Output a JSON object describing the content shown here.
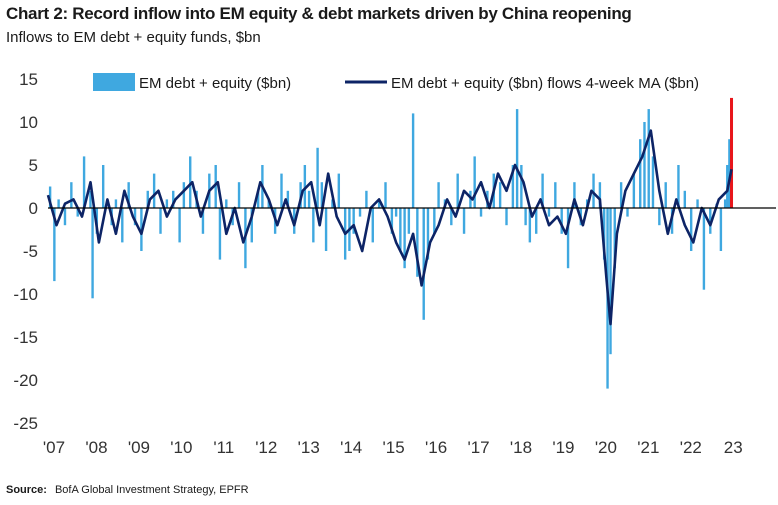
{
  "header": {
    "title": "Chart 2: Record inflow into EM equity & debt markets driven by China reopening",
    "subtitle": "Inflows to EM debt + equity funds, $bn"
  },
  "footer": {
    "source_label": "Source:",
    "source_text": "BofA Global Investment Strategy, EPFR"
  },
  "colors": {
    "bar": "#3fa8e0",
    "ma_line": "#0d2466",
    "highlight": "#e8161b",
    "axis": "#000000"
  },
  "chart_data": {
    "type": "area",
    "title": "Chart 2: Record inflow into EM equity & debt markets driven by China reopening",
    "subtitle": "Inflows to EM debt + equity funds, $bn",
    "ylim": [
      -25,
      15
    ],
    "yticks": [
      15,
      10,
      5,
      0,
      -5,
      -10,
      -15,
      -20,
      -25
    ],
    "xlim": [
      2007.0,
      2023.3
    ],
    "xtick_labels": [
      "'07",
      "'08",
      "'09",
      "'10",
      "'11",
      "'12",
      "'13",
      "'14",
      "'15",
      "'16",
      "'17",
      "'18",
      "'19",
      "'20",
      "'21",
      "'22",
      "23"
    ],
    "legend_placement": "top",
    "series": [
      {
        "name": "EM debt + equity ($bn)",
        "kind": "weekly bars",
        "x": [
          2007.05,
          2007.15,
          2007.25,
          2007.4,
          2007.55,
          2007.7,
          2007.85,
          2008.0,
          2008.05,
          2008.15,
          2008.3,
          2008.5,
          2008.6,
          2008.75,
          2008.9,
          2009.05,
          2009.2,
          2009.35,
          2009.5,
          2009.65,
          2009.8,
          2009.95,
          2010.1,
          2010.2,
          2010.35,
          2010.5,
          2010.65,
          2010.8,
          2010.95,
          2011.05,
          2011.2,
          2011.35,
          2011.5,
          2011.65,
          2011.8,
          2011.95,
          2012.05,
          2012.2,
          2012.35,
          2012.5,
          2012.65,
          2012.8,
          2012.95,
          2013.05,
          2013.15,
          2013.25,
          2013.35,
          2013.45,
          2013.55,
          2013.7,
          2013.85,
          2014.0,
          2014.1,
          2014.2,
          2014.35,
          2014.5,
          2014.65,
          2014.8,
          2014.95,
          2015.1,
          2015.2,
          2015.3,
          2015.4,
          2015.5,
          2015.6,
          2015.7,
          2015.85,
          2015.95,
          2016.1,
          2016.2,
          2016.35,
          2016.5,
          2016.65,
          2016.8,
          2016.95,
          2017.05,
          2017.2,
          2017.35,
          2017.5,
          2017.65,
          2017.8,
          2017.95,
          2018.05,
          2018.15,
          2018.25,
          2018.35,
          2018.5,
          2018.65,
          2018.8,
          2018.95,
          2019.1,
          2019.25,
          2019.4,
          2019.55,
          2019.7,
          2019.85,
          2020.0,
          2020.1,
          2020.18,
          2020.25,
          2020.35,
          2020.5,
          2020.65,
          2020.8,
          2020.95,
          2021.05,
          2021.15,
          2021.25,
          2021.4,
          2021.55,
          2021.7,
          2021.85,
          2022.0,
          2022.15,
          2022.3,
          2022.45,
          2022.6,
          2022.75,
          2022.85,
          2022.95,
          2023.0,
          2023.05,
          2023.1
        ],
        "y": [
          2.5,
          -8.5,
          1,
          -2,
          3,
          -1,
          6,
          2,
          -10.5,
          -3,
          5,
          -2,
          1,
          -4,
          3,
          -2,
          -5,
          2,
          4,
          -3,
          1,
          2,
          -4,
          3,
          6,
          2,
          -3,
          4,
          5,
          -6,
          1,
          -2,
          3,
          -7,
          -4,
          2,
          5,
          1,
          -3,
          4,
          2,
          -3,
          3,
          5,
          2,
          -4,
          7,
          3,
          -5,
          1,
          4,
          -6,
          -5,
          -3,
          -1,
          2,
          -4,
          1,
          3,
          -3,
          -1,
          -5,
          -7,
          -3,
          11,
          -8,
          -13,
          -6,
          -3,
          3,
          1,
          -2,
          4,
          -3,
          2,
          6,
          -1,
          2,
          4,
          3,
          -2,
          5,
          11.5,
          5,
          -2,
          -4,
          -3,
          4,
          -1,
          3,
          -3,
          -7,
          3,
          -2,
          1,
          4,
          3,
          -6,
          -21,
          -17,
          -7,
          3,
          -1,
          4,
          8,
          10,
          11.5,
          6,
          -2,
          3,
          -3,
          5,
          2,
          -5,
          1,
          -9.5,
          -3,
          0.5,
          -5,
          1,
          5,
          8,
          12.8
        ],
        "highlight_last": true
      },
      {
        "name": "EM debt + equity ($bn) flows 4-week MA ($bn)",
        "kind": "line",
        "x": [
          2007.0,
          2007.2,
          2007.4,
          2007.6,
          2007.8,
          2008.0,
          2008.2,
          2008.4,
          2008.6,
          2008.8,
          2009.0,
          2009.2,
          2009.4,
          2009.6,
          2009.8,
          2010.0,
          2010.2,
          2010.4,
          2010.6,
          2010.8,
          2011.0,
          2011.2,
          2011.4,
          2011.6,
          2011.8,
          2012.0,
          2012.2,
          2012.4,
          2012.6,
          2012.8,
          2013.0,
          2013.2,
          2013.4,
          2013.6,
          2013.8,
          2014.0,
          2014.2,
          2014.4,
          2014.6,
          2014.8,
          2015.0,
          2015.2,
          2015.4,
          2015.6,
          2015.8,
          2016.0,
          2016.2,
          2016.4,
          2016.6,
          2016.8,
          2017.0,
          2017.2,
          2017.4,
          2017.6,
          2017.8,
          2018.0,
          2018.2,
          2018.4,
          2018.6,
          2018.8,
          2019.0,
          2019.2,
          2019.4,
          2019.6,
          2019.8,
          2020.0,
          2020.15,
          2020.25,
          2020.4,
          2020.6,
          2020.8,
          2021.0,
          2021.2,
          2021.4,
          2021.6,
          2021.8,
          2022.0,
          2022.2,
          2022.4,
          2022.6,
          2022.8,
          2023.0,
          2023.1
        ],
        "y": [
          1.5,
          -2,
          0.5,
          1,
          -1,
          3,
          -4,
          1,
          -3,
          2,
          -1,
          -3,
          1,
          2,
          -1,
          1,
          2,
          3,
          -1,
          2,
          3,
          -3,
          0,
          -4,
          -1,
          3,
          1,
          -2,
          1,
          -2,
          2,
          3,
          -2,
          4,
          -1,
          -3,
          -2,
          -5,
          0,
          1,
          -1,
          -4,
          -6,
          -3,
          -9,
          -4,
          -2,
          1,
          -1,
          2,
          1,
          3,
          0,
          4,
          2,
          5,
          3,
          -1,
          1,
          -2,
          -1,
          -3,
          1,
          -2,
          2,
          1,
          -8,
          -13.5,
          -3,
          2,
          4,
          6,
          9,
          2,
          -3,
          1,
          -2,
          -4,
          0,
          -2,
          1,
          2,
          4.5
        ]
      }
    ]
  }
}
